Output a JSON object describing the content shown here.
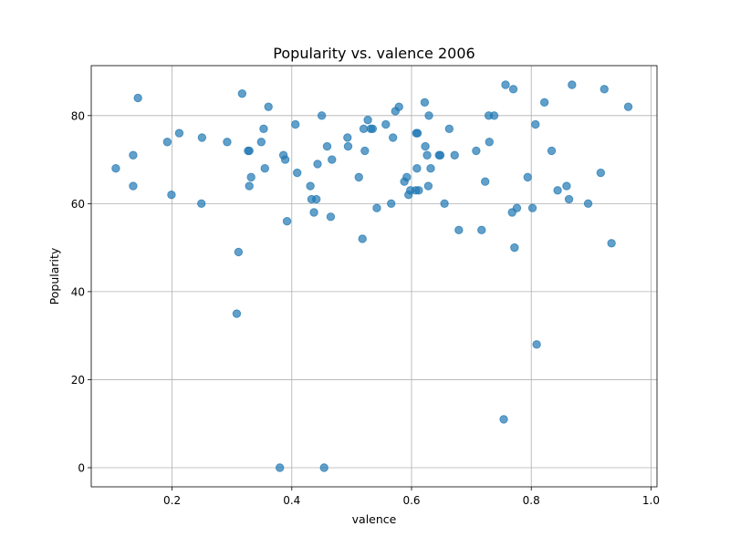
{
  "chart_data": {
    "type": "scatter",
    "title": "Popularity vs. valence 2006",
    "xlabel": "valence",
    "ylabel": "Popularity",
    "xlim": [
      0.065,
      1.01
    ],
    "ylim": [
      -4.35,
      91.35
    ],
    "xticks": [
      0.2,
      0.4,
      0.6,
      0.8,
      1.0
    ],
    "xtick_labels": [
      "0.2",
      "0.4",
      "0.6",
      "0.8",
      "1.0"
    ],
    "yticks": [
      0,
      20,
      40,
      60,
      80
    ],
    "ytick_labels": [
      "0",
      "20",
      "40",
      "60",
      "80"
    ],
    "grid": true,
    "color": "#1f77b4",
    "points": [
      [
        0.106,
        68
      ],
      [
        0.135,
        64
      ],
      [
        0.135,
        71
      ],
      [
        0.143,
        84
      ],
      [
        0.192,
        74
      ],
      [
        0.199,
        62
      ],
      [
        0.212,
        76
      ],
      [
        0.249,
        60
      ],
      [
        0.25,
        75
      ],
      [
        0.292,
        74
      ],
      [
        0.308,
        35
      ],
      [
        0.311,
        49
      ],
      [
        0.317,
        85
      ],
      [
        0.327,
        72
      ],
      [
        0.329,
        72
      ],
      [
        0.329,
        64
      ],
      [
        0.332,
        66
      ],
      [
        0.349,
        74
      ],
      [
        0.353,
        77
      ],
      [
        0.355,
        68
      ],
      [
        0.361,
        82
      ],
      [
        0.38,
        0
      ],
      [
        0.386,
        71
      ],
      [
        0.389,
        70
      ],
      [
        0.392,
        56
      ],
      [
        0.406,
        78
      ],
      [
        0.409,
        67
      ],
      [
        0.431,
        64
      ],
      [
        0.433,
        61
      ],
      [
        0.437,
        58
      ],
      [
        0.441,
        61
      ],
      [
        0.443,
        69
      ],
      [
        0.45,
        80
      ],
      [
        0.454,
        0
      ],
      [
        0.459,
        73
      ],
      [
        0.465,
        57
      ],
      [
        0.467,
        70
      ],
      [
        0.493,
        75
      ],
      [
        0.494,
        73
      ],
      [
        0.512,
        66
      ],
      [
        0.518,
        52
      ],
      [
        0.52,
        77
      ],
      [
        0.522,
        72
      ],
      [
        0.527,
        79
      ],
      [
        0.532,
        77
      ],
      [
        0.535,
        77
      ],
      [
        0.542,
        59
      ],
      [
        0.557,
        78
      ],
      [
        0.566,
        60
      ],
      [
        0.569,
        75
      ],
      [
        0.573,
        81
      ],
      [
        0.579,
        82
      ],
      [
        0.588,
        65
      ],
      [
        0.592,
        66
      ],
      [
        0.595,
        62
      ],
      [
        0.598,
        63
      ],
      [
        0.607,
        63
      ],
      [
        0.608,
        76
      ],
      [
        0.609,
        68
      ],
      [
        0.61,
        76
      ],
      [
        0.612,
        63
      ],
      [
        0.622,
        83
      ],
      [
        0.623,
        73
      ],
      [
        0.626,
        71
      ],
      [
        0.628,
        64
      ],
      [
        0.629,
        80
      ],
      [
        0.632,
        68
      ],
      [
        0.646,
        71
      ],
      [
        0.648,
        71
      ],
      [
        0.655,
        60
      ],
      [
        0.663,
        77
      ],
      [
        0.672,
        71
      ],
      [
        0.679,
        54
      ],
      [
        0.708,
        72
      ],
      [
        0.717,
        54
      ],
      [
        0.723,
        65
      ],
      [
        0.729,
        80
      ],
      [
        0.73,
        74
      ],
      [
        0.738,
        80
      ],
      [
        0.754,
        11
      ],
      [
        0.757,
        87
      ],
      [
        0.768,
        58
      ],
      [
        0.77,
        86
      ],
      [
        0.772,
        50
      ],
      [
        0.776,
        59
      ],
      [
        0.794,
        66
      ],
      [
        0.802,
        59
      ],
      [
        0.807,
        78
      ],
      [
        0.809,
        28
      ],
      [
        0.822,
        83
      ],
      [
        0.834,
        72
      ],
      [
        0.844,
        63
      ],
      [
        0.859,
        64
      ],
      [
        0.863,
        61
      ],
      [
        0.868,
        87
      ],
      [
        0.895,
        60
      ],
      [
        0.916,
        67
      ],
      [
        0.922,
        86
      ],
      [
        0.934,
        51
      ],
      [
        0.962,
        82
      ]
    ]
  }
}
